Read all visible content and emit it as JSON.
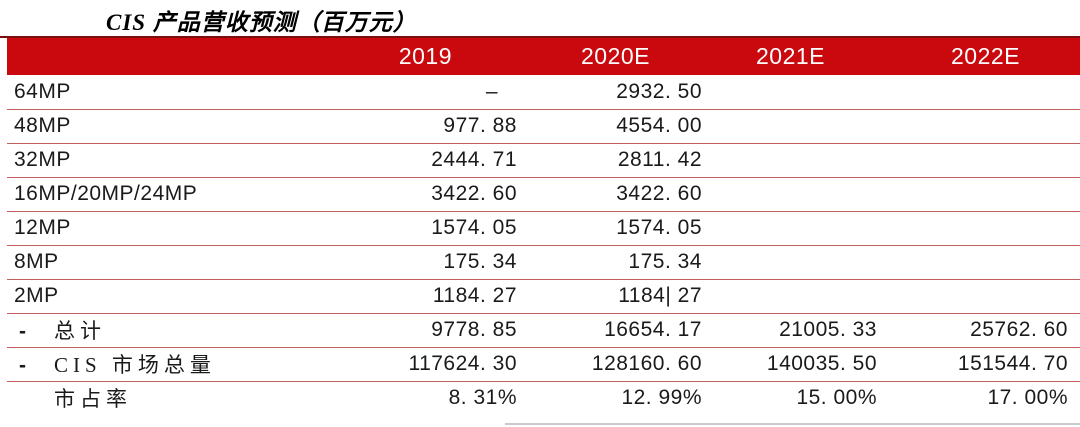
{
  "title": "CIS 产品营收预测（百万元）",
  "table": {
    "header": {
      "labels": [
        "2019",
        "2020E",
        "2021E",
        "2022E"
      ]
    },
    "rows": [
      {
        "bullet": "",
        "indent": false,
        "label": "64MP",
        "label_style": "sans",
        "values": [
          "–   ",
          "2932. 50",
          "",
          ""
        ]
      },
      {
        "bullet": "",
        "indent": false,
        "label": "48MP",
        "label_style": "sans",
        "values": [
          "977. 88",
          "4554. 00",
          "",
          ""
        ]
      },
      {
        "bullet": "",
        "indent": false,
        "label": "32MP",
        "label_style": "sans",
        "values": [
          "2444. 71",
          "2811. 42",
          "",
          ""
        ]
      },
      {
        "bullet": "",
        "indent": false,
        "label": "16MP/20MP/24MP",
        "label_style": "sans",
        "values": [
          "3422. 60",
          "3422. 60",
          "",
          ""
        ]
      },
      {
        "bullet": "",
        "indent": false,
        "label": "12MP",
        "label_style": "sans",
        "values": [
          "1574. 05",
          "1574. 05",
          "",
          ""
        ]
      },
      {
        "bullet": "",
        "indent": false,
        "label": "8MP",
        "label_style": "sans",
        "values": [
          "175. 34",
          "175. 34",
          "",
          ""
        ]
      },
      {
        "bullet": "",
        "indent": false,
        "label": "2MP",
        "label_style": "sans",
        "values": [
          "1184. 27",
          "1184| 27",
          "",
          ""
        ]
      },
      {
        "bullet": "-",
        "indent": true,
        "label": "总计",
        "label_style": "kai",
        "values": [
          "9778. 85",
          "16654. 17",
          "21005. 33",
          "25762. 60"
        ]
      },
      {
        "bullet": "-",
        "indent": true,
        "label": "CIS 市场总量",
        "label_style": "kai",
        "values": [
          "117624. 30",
          "128160. 60",
          "140035. 50",
          "151544. 70"
        ]
      },
      {
        "bullet": "",
        "indent": true,
        "label": "市占率",
        "label_style": "kai",
        "values": [
          "8. 31%",
          "12. 99%",
          "15. 00%",
          "17. 00%"
        ]
      }
    ]
  },
  "colors": {
    "header_bg": "#c9090e",
    "header_text": "#ffffff",
    "row_border": "#c25e5c",
    "top_border": "#7c0e0e",
    "body_text": "#1a1a1a"
  },
  "chart_data": {
    "type": "table",
    "title": "CIS 产品营收预测（百万元）",
    "columns": [
      "2019",
      "2020E",
      "2021E",
      "2022E"
    ],
    "row_labels": [
      "64MP",
      "48MP",
      "32MP",
      "16MP/20MP/24MP",
      "12MP",
      "8MP",
      "2MP",
      "总计",
      "CIS 市场总量",
      "市占率"
    ],
    "values": [
      [
        null,
        2932.5,
        null,
        null
      ],
      [
        977.88,
        4554.0,
        null,
        null
      ],
      [
        2444.71,
        2811.42,
        null,
        null
      ],
      [
        3422.6,
        3422.6,
        null,
        null
      ],
      [
        1574.05,
        1574.05,
        null,
        null
      ],
      [
        175.34,
        175.34,
        null,
        null
      ],
      [
        1184.27,
        1184.27,
        null,
        null
      ],
      [
        9778.85,
        16654.17,
        21005.33,
        25762.6
      ],
      [
        117624.3,
        128160.6,
        140035.5,
        151544.7
      ],
      [
        "8.31%",
        "12.99%",
        "15.00%",
        "17.00%"
      ]
    ]
  }
}
